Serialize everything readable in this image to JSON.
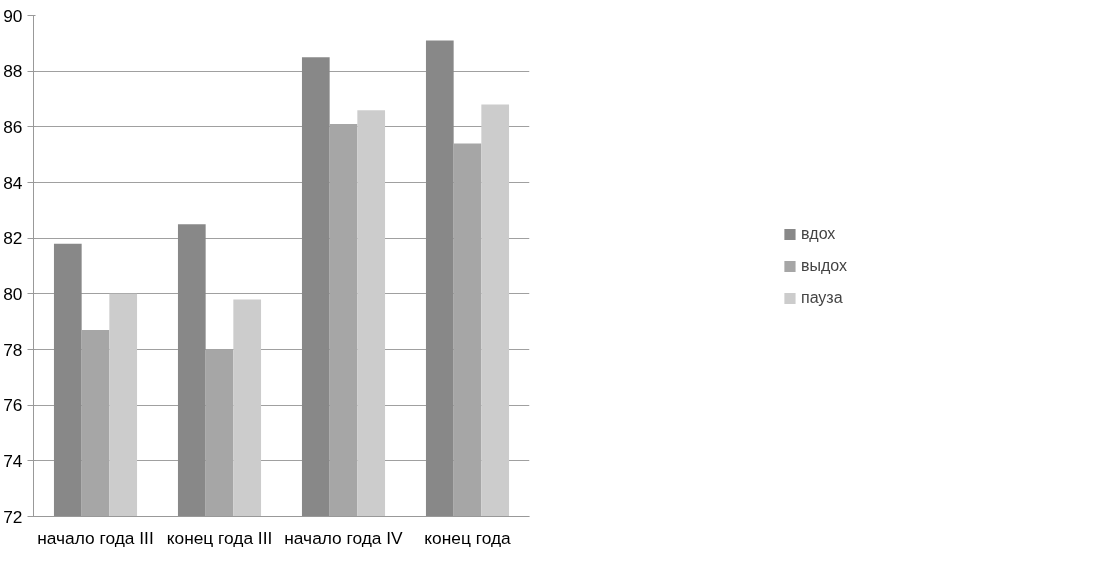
{
  "chart_data": {
    "type": "bar",
    "categories": [
      "начало года III",
      "конец года III",
      "начало года IV",
      "конец года"
    ],
    "series": [
      {
        "name": "вдох",
        "color": "#888888",
        "values": [
          81.8,
          82.5,
          88.5,
          89.1
        ]
      },
      {
        "name": "выдох",
        "color": "#a6a6a6",
        "values": [
          78.7,
          78.0,
          86.1,
          85.4
        ]
      },
      {
        "name": "пауза",
        "color": "#cccccc",
        "values": [
          80.0,
          79.8,
          86.6,
          86.8
        ]
      }
    ],
    "ylim": [
      72,
      90
    ],
    "yticks": [
      72,
      74,
      76,
      78,
      80,
      82,
      84,
      86,
      88,
      90
    ],
    "grid": "y",
    "legend": "right"
  }
}
